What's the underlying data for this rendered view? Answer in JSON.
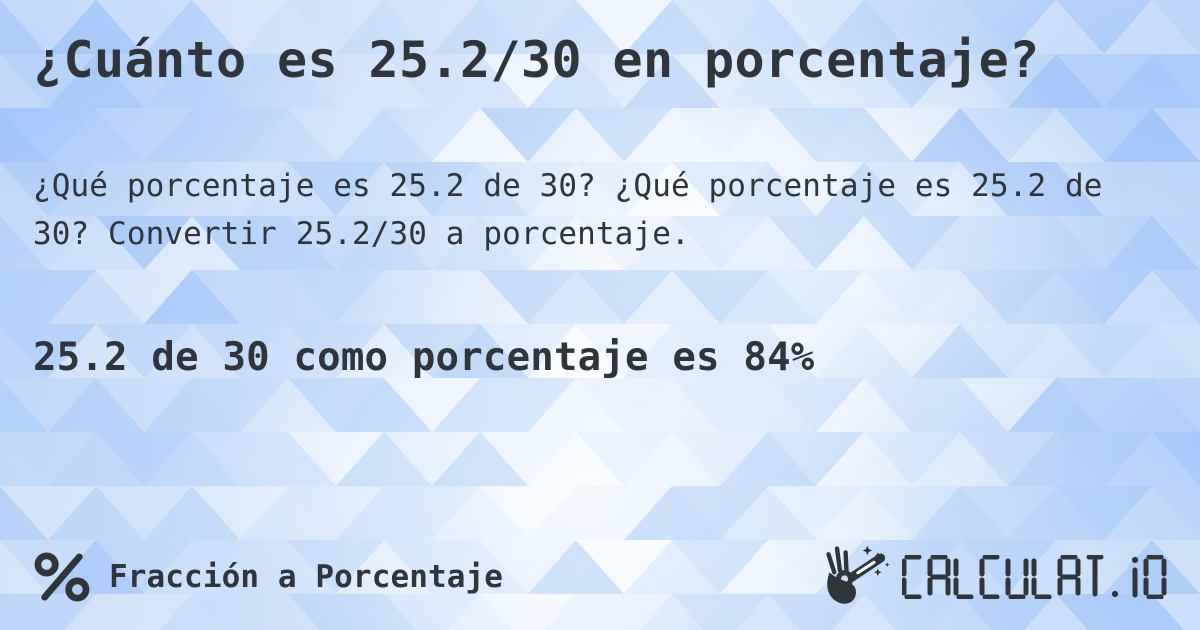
{
  "page": {
    "title": "¿Cuánto es 25.2/30 en porcentaje?",
    "description": "¿Qué porcentaje es 25.2 de 30? ¿Qué porcentaje es 25.2 de 30? Convertir 25.2/30 a porcentaje.",
    "result": "25.2 de 30 como porcentaje es 84%"
  },
  "footer": {
    "category_label": "Fracción a Porcentaje",
    "category_icon": "percent-icon",
    "logo_text": "CALCULAT.IO",
    "logo_icon": "hand-magic-wand-icon"
  },
  "colors": {
    "text": "#2f353a",
    "mosaic_palette": [
      "#ffffff",
      "#e8f2fe",
      "#d3e4fc",
      "#bdd7fa",
      "#a8cbf8",
      "#98c0f6"
    ]
  }
}
